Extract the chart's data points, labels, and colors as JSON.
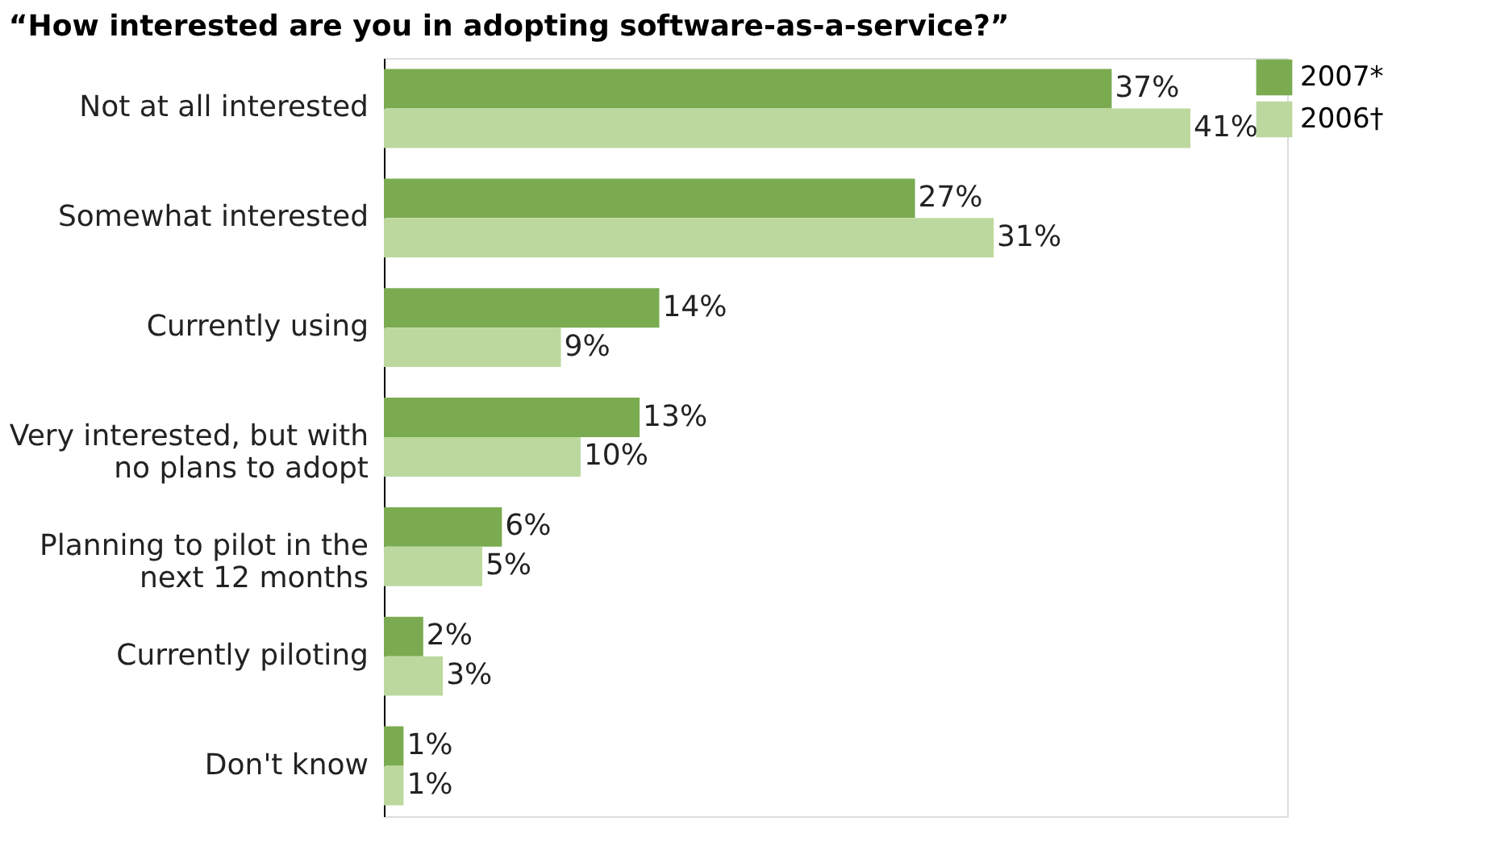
{
  "chart_data": {
    "type": "bar",
    "orientation": "horizontal",
    "title": "“How interested are you in adopting software-as-a-service?”",
    "categories": [
      "Not at all interested",
      "Somewhat interested",
      "Currently using",
      "Very interested, but with no plans to adopt",
      "Planning to pilot in the next 12 months",
      "Currently piloting",
      "Don't know"
    ],
    "series": [
      {
        "name": "2007*",
        "color": "#7aab50",
        "values": [
          37,
          27,
          14,
          13,
          6,
          2,
          1
        ],
        "value_labels": [
          "37%",
          "27%",
          "14%",
          "13%",
          "6%",
          "2%",
          "1%"
        ]
      },
      {
        "name": "2006†",
        "color": "#bcd89e",
        "values": [
          41,
          31,
          9,
          10,
          5,
          3,
          1
        ],
        "value_labels": [
          "41%",
          "31%",
          "9%",
          "10%",
          "5%",
          "3%",
          "1%"
        ]
      }
    ],
    "legend": "right",
    "grid": false
  }
}
